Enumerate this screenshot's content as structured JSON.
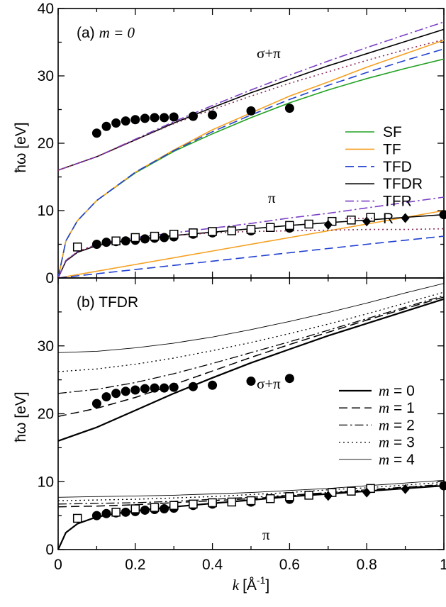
{
  "figure": {
    "xlabel_var": "k",
    "xlabel_unit": "[Å",
    "xlabel_exp": "-1",
    "xlabel_close": "]",
    "ylabel": "ħω [eV]",
    "x_ticks": [
      "0",
      "0.2",
      "0.4",
      "0.6",
      "0.8",
      "1"
    ]
  },
  "chart_data": [
    {
      "type": "line",
      "panel_label": "(a)",
      "panel_sub": "m = 0",
      "xlim": [
        0,
        1
      ],
      "ylim": [
        0,
        40
      ],
      "y_ticks": [
        "0",
        "10",
        "20",
        "30",
        "40"
      ],
      "legend_position": "right",
      "annotations": [
        "σ+π",
        "π"
      ],
      "series": [
        {
          "name": "SF",
          "color": "#22a022",
          "dash": "solid",
          "branch": "σ+π",
          "x": [
            0,
            0.02,
            0.05,
            0.1,
            0.2,
            0.3,
            0.4,
            0.5,
            0.6,
            0.7,
            0.8,
            0.9,
            1.0
          ],
          "y": [
            0,
            5.5,
            8.5,
            11.5,
            15.6,
            18.8,
            21.4,
            23.8,
            26.0,
            27.9,
            29.6,
            31.1,
            32.5
          ]
        },
        {
          "name": "TF",
          "color": "#f5a020",
          "dash": "solid",
          "branch": "σ+π",
          "x": [
            0,
            0.02,
            0.05,
            0.1,
            0.2,
            0.3,
            0.4,
            0.5,
            0.6,
            0.7,
            0.8,
            0.9,
            1.0
          ],
          "y": [
            0,
            5.5,
            8.5,
            11.5,
            15.7,
            19.0,
            22.0,
            24.5,
            27.0,
            29.1,
            31.3,
            33.3,
            35.3
          ]
        },
        {
          "name": "TF",
          "color": "#f5a020",
          "dash": "solid",
          "branch": "π",
          "x": [
            0,
            0.2,
            0.4,
            0.6,
            0.8,
            1.0
          ],
          "y": [
            0,
            2.0,
            4.0,
            6.0,
            8.0,
            10.0
          ]
        },
        {
          "name": "TFD",
          "color": "#2040d0",
          "dash": "long",
          "branch": "σ+π",
          "x": [
            0,
            0.02,
            0.05,
            0.1,
            0.2,
            0.3,
            0.4,
            0.5,
            0.6,
            0.7,
            0.8,
            0.9,
            1.0
          ],
          "y": [
            0,
            5.5,
            8.5,
            11.5,
            15.7,
            18.9,
            21.7,
            24.2,
            26.5,
            28.6,
            30.5,
            32.3,
            34.0
          ]
        },
        {
          "name": "TFD",
          "color": "#2040d0",
          "dash": "long",
          "branch": "π",
          "x": [
            0,
            0.2,
            0.4,
            0.6,
            0.8,
            1.0
          ],
          "y": [
            0,
            1.25,
            2.5,
            3.75,
            5.0,
            6.2
          ]
        },
        {
          "name": "TFDR",
          "color": "#000000",
          "dash": "solid",
          "branch": "σ+π",
          "x": [
            0,
            0.1,
            0.2,
            0.3,
            0.4,
            0.5,
            0.6,
            0.7,
            0.8,
            0.9,
            1.0
          ],
          "y": [
            16.0,
            18.0,
            20.5,
            23.0,
            25.3,
            27.5,
            29.5,
            31.5,
            33.3,
            35.1,
            36.9
          ]
        },
        {
          "name": "TFDR",
          "color": "#000000",
          "dash": "solid",
          "branch": "π",
          "x": [
            0,
            0.02,
            0.05,
            0.1,
            0.15,
            0.2,
            0.3,
            0.4,
            0.5,
            0.6,
            0.7,
            0.8,
            0.9,
            1.0
          ],
          "y": [
            0,
            2.5,
            3.8,
            4.8,
            5.3,
            5.7,
            6.3,
            6.8,
            7.3,
            7.8,
            8.2,
            8.6,
            9.0,
            9.4
          ]
        },
        {
          "name": "TFR",
          "color": "#7b3fc4",
          "dash": "dashdot",
          "branch": "σ+π",
          "x": [
            0,
            0.1,
            0.2,
            0.3,
            0.4,
            0.5,
            0.6,
            0.7,
            0.8,
            0.9,
            1.0
          ],
          "y": [
            16.0,
            18.0,
            20.6,
            23.2,
            25.6,
            27.9,
            30.1,
            32.2,
            34.2,
            36.1,
            38.0
          ]
        },
        {
          "name": "TFR",
          "color": "#7b3fc4",
          "dash": "dashdot",
          "branch": "π",
          "x": [
            0,
            0.02,
            0.05,
            0.1,
            0.2,
            0.3,
            0.4,
            0.5,
            0.6,
            0.7,
            0.8,
            0.9,
            1.0
          ],
          "y": [
            0,
            2.6,
            3.9,
            5.0,
            6.0,
            6.7,
            7.4,
            8.1,
            8.9,
            9.6,
            10.4,
            11.2,
            12.0
          ]
        },
        {
          "name": "R",
          "color": "#8a2a5a",
          "dash": "dotted",
          "branch": "σ+π",
          "x": [
            0,
            0.1,
            0.2,
            0.3,
            0.4,
            0.5,
            0.6,
            0.7,
            0.8,
            0.9,
            1.0
          ],
          "y": [
            16.0,
            18.0,
            20.5,
            22.9,
            25.0,
            27.0,
            28.9,
            30.6,
            32.3,
            33.9,
            35.4
          ]
        },
        {
          "name": "R",
          "color": "#8a2a5a",
          "dash": "dotted",
          "branch": "π",
          "x": [
            0,
            0.02,
            0.05,
            0.1,
            0.2,
            0.3,
            0.4,
            0.5,
            0.6,
            0.7,
            0.8,
            0.9,
            1.0
          ],
          "y": [
            0,
            2.6,
            3.9,
            4.9,
            5.8,
            6.3,
            6.7,
            6.9,
            7.0,
            7.1,
            7.2,
            7.2,
            7.3
          ]
        }
      ],
      "markers": [
        {
          "shape": "circle",
          "x": [
            0.1,
            0.125,
            0.15,
            0.175,
            0.2,
            0.225,
            0.25,
            0.275,
            0.3,
            0.35,
            0.4,
            0.5,
            0.6
          ],
          "y": [
            21.5,
            22.5,
            23.0,
            23.3,
            23.5,
            23.7,
            23.8,
            23.8,
            23.9,
            24.0,
            24.2,
            24.8,
            25.2
          ]
        },
        {
          "shape": "circle",
          "x": [
            0.1,
            0.125,
            0.15,
            0.175,
            0.2,
            0.225,
            0.25,
            0.275,
            0.3,
            0.35,
            0.4,
            0.5,
            0.6,
            1.0
          ],
          "y": [
            5.0,
            5.3,
            5.4,
            5.5,
            5.6,
            5.8,
            5.9,
            6.0,
            6.1,
            6.5,
            6.7,
            7.0,
            7.4,
            9.4
          ]
        },
        {
          "shape": "square",
          "x": [
            0.05,
            0.15,
            0.2,
            0.25,
            0.3,
            0.35,
            0.4,
            0.45,
            0.5,
            0.55,
            0.6,
            0.65,
            0.71,
            0.76,
            0.81
          ],
          "y": [
            4.6,
            5.5,
            6.0,
            6.2,
            6.5,
            6.7,
            6.9,
            7.0,
            7.2,
            7.5,
            7.8,
            8.0,
            8.4,
            8.6,
            9.0
          ]
        },
        {
          "shape": "diamond",
          "x": [
            0.7,
            0.8,
            0.9
          ],
          "y": [
            7.9,
            8.4,
            8.9
          ]
        }
      ]
    },
    {
      "type": "line",
      "panel_label": "(b) TFDR",
      "xlim": [
        0,
        1
      ],
      "ylim": [
        0,
        40
      ],
      "y_ticks": [
        "0",
        "10",
        "20",
        "30"
      ],
      "legend_position": "right",
      "annotations": [
        "σ+π",
        "π"
      ],
      "series": [
        {
          "name": "m = 0",
          "color": "#000000",
          "dash": "solid",
          "width": 2.2,
          "branch": "σ+π",
          "x": [
            0,
            0.1,
            0.2,
            0.3,
            0.4,
            0.5,
            0.6,
            0.7,
            0.8,
            0.9,
            1.0
          ],
          "y": [
            16.0,
            18.0,
            20.5,
            23.0,
            25.3,
            27.5,
            29.5,
            31.5,
            33.3,
            35.1,
            36.9
          ]
        },
        {
          "name": "m = 0",
          "color": "#000000",
          "dash": "solid",
          "width": 2.2,
          "branch": "π",
          "x": [
            0,
            0.02,
            0.05,
            0.1,
            0.15,
            0.2,
            0.3,
            0.4,
            0.5,
            0.6,
            0.7,
            0.8,
            0.9,
            1.0
          ],
          "y": [
            0,
            2.5,
            3.8,
            4.8,
            5.3,
            5.7,
            6.3,
            6.8,
            7.3,
            7.8,
            8.2,
            8.6,
            9.0,
            9.4
          ]
        },
        {
          "name": "m = 1",
          "color": "#000000",
          "dash": "long",
          "width": 1.5,
          "branch": "σ+π",
          "x": [
            0,
            0.1,
            0.2,
            0.3,
            0.4,
            0.5,
            0.6,
            0.7,
            0.8,
            0.9,
            1.0
          ],
          "y": [
            19.6,
            20.8,
            22.4,
            24.3,
            26.3,
            28.3,
            30.2,
            32.0,
            33.8,
            35.5,
            37.2
          ]
        },
        {
          "name": "m = 1",
          "color": "#000000",
          "dash": "long",
          "width": 1.5,
          "branch": "π",
          "x": [
            0,
            0.1,
            0.2,
            0.3,
            0.4,
            0.5,
            0.6,
            0.7,
            0.8,
            0.9,
            1.0
          ],
          "y": [
            6.3,
            6.4,
            6.6,
            6.9,
            7.2,
            7.5,
            7.9,
            8.3,
            8.7,
            9.1,
            9.5
          ]
        },
        {
          "name": "m = 2",
          "color": "#000000",
          "dash": "dashdot",
          "width": 1.3,
          "branch": "σ+π",
          "x": [
            0,
            0.1,
            0.2,
            0.3,
            0.4,
            0.5,
            0.6,
            0.7,
            0.8,
            0.9,
            1.0
          ],
          "y": [
            23.0,
            23.6,
            24.6,
            25.9,
            27.4,
            29.0,
            30.6,
            32.3,
            34.0,
            35.7,
            37.4
          ]
        },
        {
          "name": "m = 2",
          "color": "#000000",
          "dash": "dashdot",
          "width": 1.3,
          "branch": "π",
          "x": [
            0,
            0.1,
            0.2,
            0.3,
            0.4,
            0.5,
            0.6,
            0.7,
            0.8,
            0.9,
            1.0
          ],
          "y": [
            6.7,
            6.8,
            6.9,
            7.1,
            7.4,
            7.7,
            8.0,
            8.4,
            8.8,
            9.2,
            9.6
          ]
        },
        {
          "name": "m = 3",
          "color": "#000000",
          "dash": "dotted",
          "width": 1.3,
          "branch": "σ+π",
          "x": [
            0,
            0.1,
            0.2,
            0.3,
            0.4,
            0.5,
            0.6,
            0.7,
            0.8,
            0.9,
            1.0
          ],
          "y": [
            26.2,
            26.6,
            27.3,
            28.2,
            29.3,
            30.5,
            31.8,
            33.2,
            34.7,
            36.3,
            37.9
          ]
        },
        {
          "name": "m = 3",
          "color": "#000000",
          "dash": "dotted",
          "width": 1.3,
          "branch": "π",
          "x": [
            0,
            0.1,
            0.2,
            0.3,
            0.4,
            0.5,
            0.6,
            0.7,
            0.8,
            0.9,
            1.0
          ],
          "y": [
            7.2,
            7.3,
            7.4,
            7.6,
            7.8,
            8.1,
            8.4,
            8.8,
            9.1,
            9.5,
            9.9
          ]
        },
        {
          "name": "m = 4",
          "color": "#000000",
          "dash": "solid",
          "width": 0.9,
          "branch": "σ+π",
          "x": [
            0,
            0.1,
            0.2,
            0.3,
            0.4,
            0.5,
            0.6,
            0.7,
            0.8,
            0.9,
            1.0
          ],
          "y": [
            29.0,
            29.2,
            29.7,
            30.4,
            31.3,
            32.4,
            33.6,
            34.9,
            36.3,
            37.8,
            39.2
          ]
        },
        {
          "name": "m = 4",
          "color": "#000000",
          "dash": "solid",
          "width": 0.9,
          "branch": "π",
          "x": [
            0,
            0.1,
            0.2,
            0.3,
            0.4,
            0.5,
            0.6,
            0.7,
            0.8,
            0.9,
            1.0
          ],
          "y": [
            7.7,
            7.8,
            7.9,
            8.0,
            8.2,
            8.4,
            8.7,
            9.0,
            9.4,
            9.8,
            10.2
          ]
        }
      ],
      "markers": [
        {
          "shape": "circle",
          "x": [
            0.1,
            0.125,
            0.15,
            0.175,
            0.2,
            0.225,
            0.25,
            0.275,
            0.3,
            0.35,
            0.4,
            0.5,
            0.6
          ],
          "y": [
            21.5,
            22.5,
            23.0,
            23.3,
            23.5,
            23.7,
            23.8,
            23.8,
            23.9,
            24.0,
            24.2,
            24.8,
            25.2
          ]
        },
        {
          "shape": "circle",
          "x": [
            0.1,
            0.125,
            0.15,
            0.175,
            0.2,
            0.225,
            0.25,
            0.275,
            0.3,
            0.35,
            0.4,
            0.5,
            0.6,
            1.0
          ],
          "y": [
            5.0,
            5.3,
            5.4,
            5.5,
            5.6,
            5.8,
            5.9,
            6.0,
            6.1,
            6.5,
            6.7,
            7.0,
            7.4,
            9.4
          ]
        },
        {
          "shape": "square",
          "x": [
            0.05,
            0.15,
            0.2,
            0.25,
            0.3,
            0.35,
            0.4,
            0.45,
            0.5,
            0.55,
            0.6,
            0.65,
            0.71,
            0.76,
            0.81
          ],
          "y": [
            4.6,
            5.5,
            6.0,
            6.2,
            6.5,
            6.7,
            6.9,
            7.0,
            7.2,
            7.5,
            7.8,
            8.0,
            8.4,
            8.6,
            9.0
          ]
        },
        {
          "shape": "diamond",
          "x": [
            0.7,
            0.8,
            0.9
          ],
          "y": [
            7.9,
            8.4,
            8.9
          ]
        }
      ]
    }
  ]
}
